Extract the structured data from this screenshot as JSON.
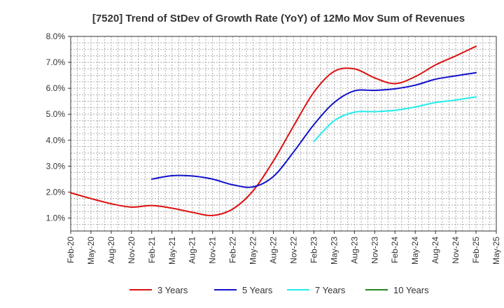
{
  "chart_data": {
    "type": "line",
    "title": "[7520]  Trend of StDev of Growth Rate (YoY) of 12Mo Mov Sum of Revenues",
    "xlabel": "",
    "ylabel": "",
    "ylim": [
      0.5,
      8.0
    ],
    "yticks": [
      1.0,
      2.0,
      3.0,
      4.0,
      5.0,
      6.0,
      7.0,
      8.0
    ],
    "ytick_labels": [
      "1.0%",
      "2.0%",
      "3.0%",
      "4.0%",
      "5.0%",
      "6.0%",
      "7.0%",
      "8.0%"
    ],
    "x_categories": [
      "Feb-20",
      "May-20",
      "Aug-20",
      "Nov-20",
      "Feb-21",
      "May-21",
      "Aug-21",
      "Nov-21",
      "Feb-22",
      "May-22",
      "Aug-22",
      "Nov-22",
      "Feb-23",
      "May-23",
      "Aug-23",
      "Nov-23",
      "Feb-24",
      "May-24",
      "Aug-24",
      "Nov-24",
      "Feb-25",
      "May-25"
    ],
    "grid": true,
    "legend_position": "bottom",
    "series": [
      {
        "name": "3 Years",
        "color": "#dd1111",
        "values": [
          1.97,
          1.75,
          1.55,
          1.42,
          1.48,
          1.38,
          1.22,
          1.1,
          1.35,
          2.05,
          3.2,
          4.55,
          5.85,
          6.65,
          6.75,
          6.4,
          6.18,
          6.45,
          6.9,
          7.25,
          7.62
        ]
      },
      {
        "name": "5 Years",
        "color": "#1111cc",
        "values": [
          null,
          null,
          null,
          null,
          2.5,
          2.63,
          2.62,
          2.5,
          2.28,
          2.2,
          2.6,
          3.55,
          4.6,
          5.45,
          5.9,
          5.92,
          5.98,
          6.12,
          6.35,
          6.48,
          6.6
        ]
      },
      {
        "name": "7 Years",
        "color": "#22eeee",
        "values": [
          null,
          null,
          null,
          null,
          null,
          null,
          null,
          null,
          null,
          null,
          null,
          null,
          3.95,
          4.75,
          5.08,
          5.1,
          5.15,
          5.28,
          5.45,
          5.55,
          5.67
        ]
      },
      {
        "name": "10 Years",
        "color": "#228822",
        "values": []
      }
    ]
  }
}
